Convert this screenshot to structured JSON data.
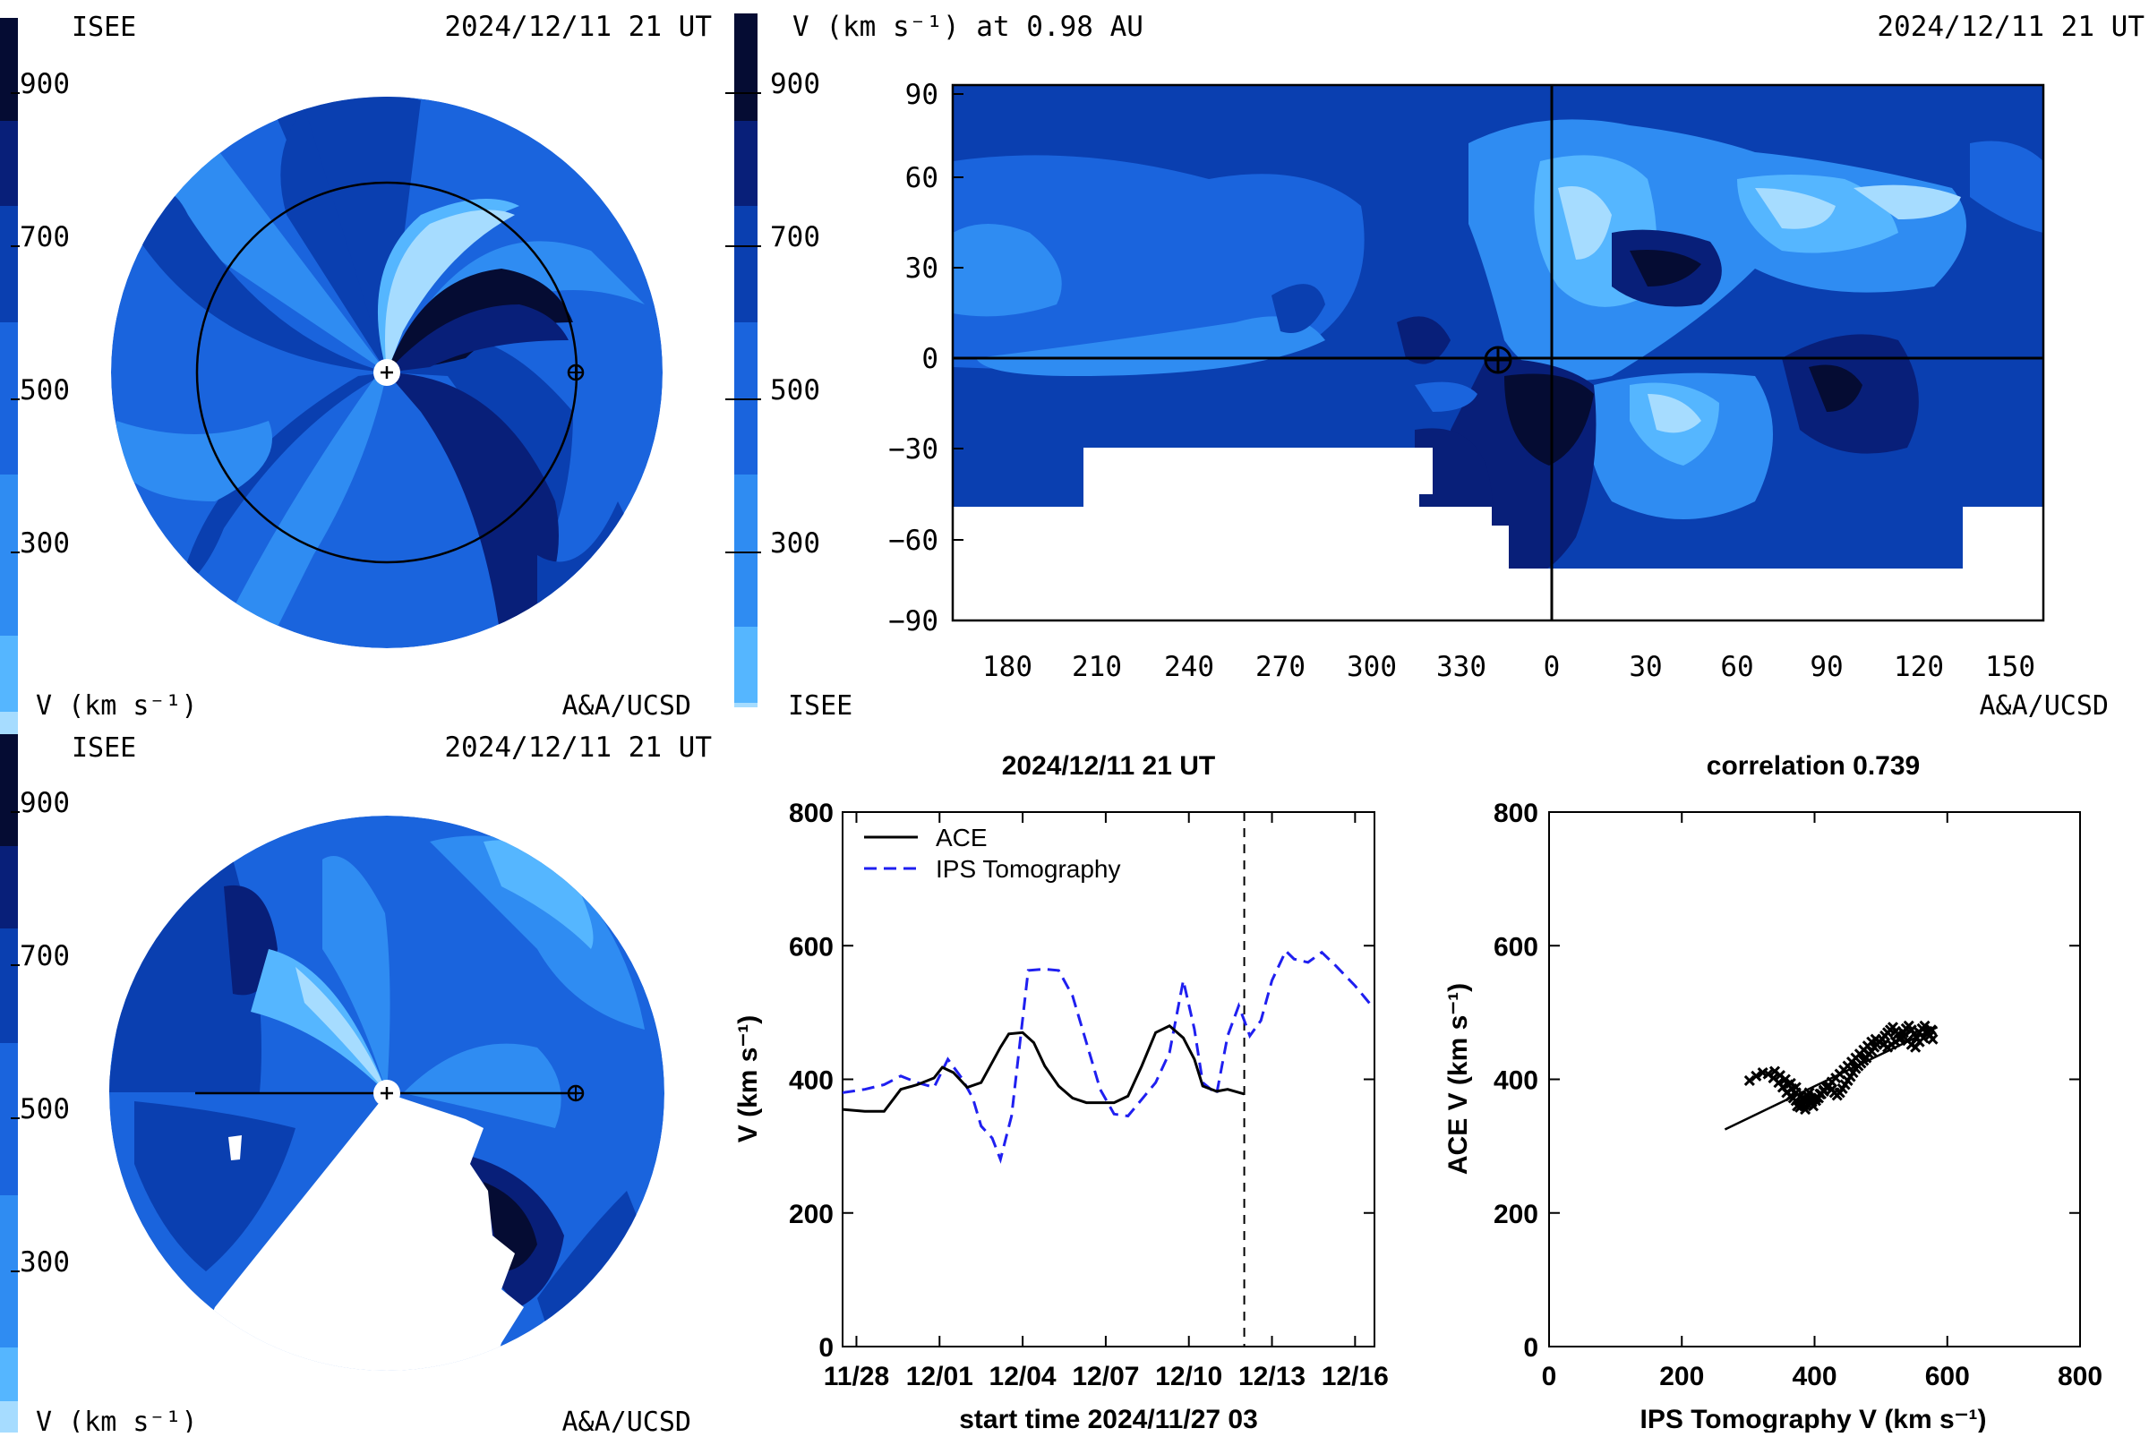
{
  "colors": {
    "scale": [
      "#a6dcff",
      "#55b6ff",
      "#2f8cf2",
      "#1a64dd",
      "#0a3fb0",
      "#081f79",
      "#050c33"
    ],
    "white": "#ffffff",
    "ink": "#000000",
    "ips": "#1f1ff0"
  },
  "panel_ecliptic": {
    "label_left": "ISEE",
    "timestamp": "2024/12/11 21 UT",
    "credit": "A&A/UCSD",
    "colorbar_unit": "V (km s⁻¹)",
    "colorbar_ticks": [
      "900",
      "700",
      "500",
      "300"
    ]
  },
  "panel_meridional": {
    "label_left": "ISEE",
    "timestamp": "2024/12/11 21 UT",
    "credit": "A&A/UCSD",
    "colorbar_unit": "V (km s⁻¹)",
    "colorbar_ticks": [
      "900",
      "700",
      "500",
      "300"
    ]
  },
  "panel_synoptic": {
    "title": "V (km s⁻¹) at 0.98 AU",
    "timestamp": "2024/12/11 21 UT",
    "colorbar_label": "ISEE",
    "credit": "A&A/UCSD",
    "colorbar_ticks": [
      "900",
      "700",
      "500",
      "300"
    ]
  },
  "chart_data": [
    {
      "type": "line",
      "title": "2024/12/11 21 UT",
      "xlabel": "start time 2024/11/27 03",
      "ylabel": "V (km s⁻¹)",
      "ylim": [
        0,
        800
      ],
      "yticks": [
        0,
        200,
        400,
        600,
        800
      ],
      "xlim": [
        0.5,
        19.7
      ],
      "xticks": [
        1,
        4,
        7,
        10,
        13,
        16,
        19
      ],
      "xtick_labels": [
        "11/28",
        "12/01",
        "12/04",
        "12/07",
        "12/10",
        "12/13",
        "12/16"
      ],
      "vline_x": 15.0,
      "legend_position": "top-left",
      "series": [
        {
          "name": "ACE",
          "style": "solid",
          "x": [
            0.5,
            1.3,
            2.0,
            2.6,
            3.2,
            3.8,
            4.1,
            4.5,
            5.0,
            5.5,
            6.2,
            6.5,
            7.0,
            7.4,
            7.8,
            8.3,
            8.8,
            9.3,
            9.8,
            10.3,
            10.8,
            11.3,
            11.8,
            12.3,
            12.8,
            13.2,
            13.5,
            14.0,
            14.4,
            15.0
          ],
          "y": [
            355,
            352,
            352,
            385,
            392,
            402,
            418,
            410,
            388,
            395,
            448,
            468,
            470,
            455,
            420,
            390,
            372,
            365,
            365,
            365,
            375,
            420,
            470,
            480,
            462,
            430,
            390,
            382,
            385,
            378
          ]
        },
        {
          "name": "IPS Tomography",
          "style": "dashed",
          "x": [
            0.5,
            1.3,
            2.0,
            2.6,
            3.2,
            3.8,
            4.3,
            4.8,
            5.2,
            5.5,
            5.9,
            6.2,
            6.6,
            7.2,
            7.8,
            8.3,
            8.8,
            9.3,
            9.8,
            10.3,
            10.8,
            11.3,
            11.8,
            12.3,
            12.8,
            13.2,
            13.5,
            14.0,
            14.4,
            14.8,
            15.0,
            15.2,
            15.6,
            16.0,
            16.5,
            16.8,
            17.3,
            17.8,
            18.3,
            19.0,
            19.6
          ],
          "y": [
            380,
            385,
            392,
            405,
            395,
            388,
            430,
            402,
            372,
            330,
            312,
            280,
            345,
            563,
            565,
            563,
            525,
            455,
            385,
            348,
            345,
            370,
            395,
            440,
            548,
            475,
            395,
            378,
            465,
            510,
            488,
            465,
            488,
            548,
            592,
            580,
            575,
            590,
            570,
            540,
            510
          ]
        }
      ]
    },
    {
      "type": "scatter",
      "title": "correlation 0.739",
      "xlabel": "IPS Tomography V (km s⁻¹)",
      "ylabel": "ACE V (km s⁻¹)",
      "xlim": [
        0,
        800
      ],
      "ylim": [
        0,
        800
      ],
      "xticks": [
        0,
        200,
        400,
        600,
        800
      ],
      "yticks": [
        0,
        200,
        400,
        600,
        800
      ],
      "fit_line": {
        "x": [
          265,
          585
        ],
        "y": [
          325,
          478
        ]
      },
      "points": {
        "x": [
          302,
          312,
          322,
          330,
          338,
          346,
          352,
          358,
          364,
          368,
          372,
          374,
          378,
          380,
          382,
          384,
          386,
          388,
          390,
          392,
          394,
          396,
          398,
          402,
          406,
          410,
          414,
          418,
          422,
          426,
          430,
          434,
          438,
          442,
          446,
          450,
          454,
          458,
          462,
          466,
          470,
          474,
          478,
          482,
          486,
          490,
          494,
          498,
          502,
          506,
          510,
          514,
          518,
          522,
          526,
          530,
          534,
          538,
          542,
          546,
          550,
          554,
          558,
          562,
          566,
          570,
          574,
          578,
          360,
          366,
          372,
          378,
          384,
          390,
          396,
          402,
          408,
          414,
          420,
          426,
          432,
          438,
          444,
          450,
          456,
          462,
          468,
          474,
          480,
          486,
          492,
          498,
          504,
          510,
          516,
          522,
          528,
          534,
          540,
          546,
          552,
          558,
          564,
          570,
          576,
          340,
          348,
          356,
          364,
          372
        ],
        "y": [
          398,
          405,
          410,
          408,
          402,
          395,
          388,
          380,
          375,
          372,
          368,
          360,
          358,
          365,
          372,
          362,
          355,
          368,
          375,
          380,
          372,
          366,
          360,
          368,
          372,
          378,
          382,
          388,
          390,
          385,
          380,
          376,
          380,
          386,
          392,
          398,
          404,
          410,
          416,
          420,
          424,
          428,
          432,
          438,
          442,
          448,
          452,
          456,
          460,
          465,
          470,
          474,
          478,
          472,
          468,
          462,
          470,
          476,
          480,
          474,
          468,
          462,
          470,
          476,
          480,
          472,
          466,
          460,
          392,
          386,
          380,
          374,
          368,
          362,
          366,
          372,
          378,
          384,
          390,
          396,
          402,
          408,
          414,
          420,
          426,
          432,
          438,
          444,
          450,
          456,
          460,
          456,
          452,
          448,
          452,
          456,
          460,
          464,
          458,
          452,
          448,
          456,
          462,
          468,
          474,
          412,
          406,
          400,
          394,
          388
        ]
      }
    }
  ]
}
